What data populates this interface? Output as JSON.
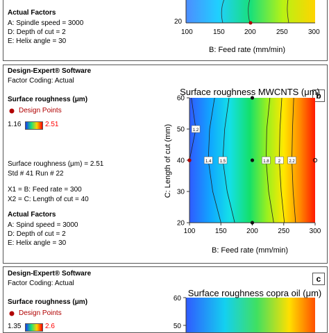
{
  "panel_a": {
    "actual_factors_title": "Actual Factors",
    "factors": [
      "A: Spindle speed = 3000",
      "D: Depth of cut = 2",
      "E: Helix angle = 30"
    ],
    "x_axis_label": "B: Feed rate (mm/min)",
    "x_ticks": [
      "100",
      "150",
      "200",
      "250",
      "300"
    ],
    "y_ticks": [
      "20"
    ]
  },
  "panel_b": {
    "badge": "b",
    "software": "Design-Expert® Software",
    "coding": "Factor Coding: Actual",
    "response_title": "Surface roughness (μm)",
    "design_points": "Design Points",
    "range_min": "1.16",
    "range_max": "2.51",
    "info": [
      "Surface roughness (μm) = 2.51",
      "Std # 41 Run # 22"
    ],
    "x_settings": [
      "X1 = B: Feed rate = 300",
      "X2 = C: Length of cut = 40"
    ],
    "actual_factors_title": "Actual Factors",
    "factors": [
      "A: Spind speed = 3000",
      "D: Depth of cut = 2",
      "E: Helix angle = 30"
    ]
  },
  "panel_c": {
    "badge": "c",
    "software": "Design-Expert® Software",
    "coding": "Factor Coding: Actual",
    "response_title": "Surface roughness (μm)",
    "design_points": "Design Points",
    "range_min": "1.35",
    "range_max": "2.6",
    "plot_title": "Surface roughness copra oil (μm)",
    "y_ticks": [
      "60",
      "50"
    ]
  },
  "colors": {
    "low": "#1a3cf0",
    "high": "#ff0000",
    "design_point": "#b00000",
    "axis": "#333333"
  },
  "chart_data": {
    "type": "contour",
    "title": "Surface roughness MWCNTS (μm)",
    "xlabel": "B: Feed rate (mm/min)",
    "ylabel": "C: Length of cut (mm)",
    "xlim": [
      100,
      300
    ],
    "ylim": [
      20,
      60
    ],
    "x_ticks": [
      "100",
      "150",
      "200",
      "250",
      "300"
    ],
    "y_ticks": [
      "20",
      "30",
      "40",
      "50",
      "60"
    ],
    "color_range": [
      1.16,
      2.51
    ],
    "contours": [
      {
        "label": "1.2",
        "level": 1.2,
        "points": [
          [
            103,
            60
          ],
          [
            110,
            50
          ],
          [
            100,
            40
          ]
        ]
      },
      {
        "label": "1.4",
        "level": 1.4,
        "points": [
          [
            140,
            60
          ],
          [
            132,
            50
          ],
          [
            130,
            40
          ],
          [
            137,
            30
          ],
          [
            150,
            20
          ]
        ]
      },
      {
        "label": "1.5",
        "level": 1.5,
        "points": [
          [
            163,
            60
          ],
          [
            156,
            50
          ],
          [
            153,
            40
          ],
          [
            160,
            30
          ],
          [
            172,
            20
          ]
        ]
      },
      {
        "label": "1.8",
        "level": 1.8,
        "points": [
          [
            228,
            60
          ],
          [
            223,
            50
          ],
          [
            222,
            40
          ],
          [
            226,
            30
          ],
          [
            234,
            20
          ]
        ]
      },
      {
        "label": "2",
        "level": 2.0,
        "points": [
          [
            247,
            60
          ],
          [
            244,
            50
          ],
          [
            243,
            40
          ],
          [
            246,
            30
          ],
          [
            251,
            20
          ]
        ]
      },
      {
        "label": "2.2",
        "level": 2.2,
        "points": [
          [
            266,
            60
          ],
          [
            264,
            50
          ],
          [
            263,
            40
          ],
          [
            265,
            30
          ],
          [
            269,
            20
          ]
        ]
      }
    ],
    "design_points": [
      [
        200,
        60
      ],
      [
        100,
        40
      ],
      [
        200,
        40
      ],
      [
        300,
        40
      ],
      [
        200,
        20
      ]
    ]
  }
}
